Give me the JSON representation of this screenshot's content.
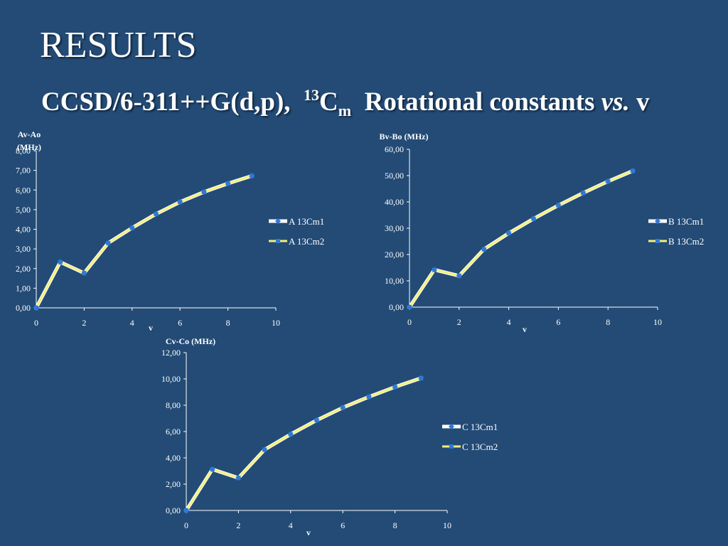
{
  "slide": {
    "title": "RESULTS",
    "subtitle_prefix": "CCSD/6-311++G(d,p),",
    "subtitle_sup": "13",
    "subtitle_c": "C",
    "subtitle_sub": "m",
    "subtitle_middle": "Rotational constants",
    "subtitle_vs": "vs.",
    "subtitle_end": "v"
  },
  "colors": {
    "background": "#234b76",
    "series1_line": "#ffffff",
    "series2_line": "#f3f07a",
    "marker": "#2f78d6"
  },
  "chart_data": [
    {
      "type": "line",
      "ylabel_lines": [
        "Av-Ao",
        "(MHz)"
      ],
      "xlabel": "v",
      "xlim": [
        0,
        10
      ],
      "ylim": [
        0,
        8
      ],
      "xticks": [
        0,
        2,
        4,
        6,
        8,
        10
      ],
      "yticks": [
        "0,00",
        "1,00",
        "2,00",
        "3,00",
        "4,00",
        "5,00",
        "6,00",
        "7,00",
        "8,00"
      ],
      "legend_position": "right",
      "series": [
        {
          "name": "A 13Cm1",
          "x": [
            0,
            1,
            2,
            3,
            4,
            5,
            6,
            7,
            8,
            9
          ],
          "values": [
            0,
            2.33,
            1.77,
            3.3,
            4.07,
            4.78,
            5.39,
            5.9,
            6.33,
            6.72
          ]
        },
        {
          "name": "A 13Cm2",
          "x": [
            0,
            1,
            2,
            3,
            4,
            5,
            6,
            7,
            8,
            9
          ],
          "values": [
            0,
            2.33,
            1.77,
            3.3,
            4.07,
            4.78,
            5.39,
            5.9,
            6.33,
            6.72
          ]
        }
      ]
    },
    {
      "type": "line",
      "ylabel_lines": [
        "Bv-Bo (MHz)"
      ],
      "xlabel": "v",
      "xlim": [
        0,
        10
      ],
      "ylim": [
        0,
        60
      ],
      "xticks": [
        0,
        2,
        4,
        6,
        8,
        10
      ],
      "yticks": [
        "0,00",
        "10,00",
        "20,00",
        "30,00",
        "40,00",
        "50,00",
        "60,00"
      ],
      "legend_position": "right",
      "series": [
        {
          "name": "B 13Cm1",
          "x": [
            0,
            1,
            2,
            3,
            4,
            5,
            6,
            7,
            8,
            9
          ],
          "values": [
            0,
            14.2,
            11.9,
            22.0,
            28.1,
            33.6,
            38.7,
            43.4,
            47.8,
            51.8
          ]
        },
        {
          "name": "B 13Cm2",
          "x": [
            0,
            1,
            2,
            3,
            4,
            5,
            6,
            7,
            8,
            9
          ],
          "values": [
            0,
            14.2,
            11.9,
            22.0,
            28.1,
            33.6,
            38.7,
            43.4,
            47.8,
            51.8
          ]
        }
      ]
    },
    {
      "type": "line",
      "ylabel_lines": [
        "Cv-Co (MHz)"
      ],
      "xlabel": "v",
      "xlim": [
        0,
        10
      ],
      "ylim": [
        0,
        12
      ],
      "xticks": [
        0,
        2,
        4,
        6,
        8,
        10
      ],
      "yticks": [
        "0,00",
        "2,00",
        "4,00",
        "6,00",
        "8,00",
        "10,00",
        "12,00"
      ],
      "legend_position": "right",
      "series": [
        {
          "name": "C 13Cm1",
          "x": [
            0,
            1,
            2,
            3,
            4,
            5,
            6,
            7,
            8,
            9
          ],
          "values": [
            0,
            3.13,
            2.47,
            4.62,
            5.79,
            6.86,
            7.82,
            8.64,
            9.39,
            10.06
          ]
        },
        {
          "name": "C 13Cm2",
          "x": [
            0,
            1,
            2,
            3,
            4,
            5,
            6,
            7,
            8,
            9
          ],
          "values": [
            0,
            3.13,
            2.47,
            4.62,
            5.79,
            6.86,
            7.82,
            8.64,
            9.39,
            10.06
          ]
        }
      ]
    }
  ]
}
